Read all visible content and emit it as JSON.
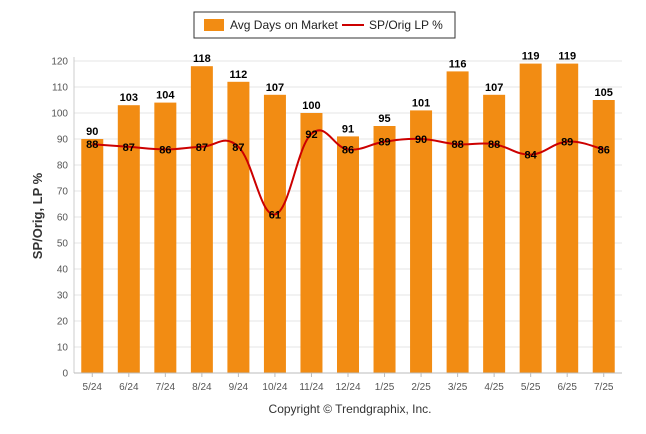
{
  "chart_data": {
    "type": "bar",
    "categories": [
      "5/24",
      "6/24",
      "7/24",
      "8/24",
      "9/24",
      "10/24",
      "11/24",
      "12/24",
      "1/25",
      "2/25",
      "3/25",
      "4/25",
      "5/25",
      "6/25",
      "7/25"
    ],
    "series": [
      {
        "name": "Avg Days on Market",
        "type": "bar",
        "color": "#F28C13",
        "values": [
          90,
          103,
          104,
          118,
          112,
          107,
          100,
          91,
          95,
          101,
          116,
          107,
          119,
          119,
          105
        ]
      },
      {
        "name": "SP/Orig LP %",
        "type": "line",
        "color": "#CC0000",
        "values": [
          88,
          87,
          86,
          87,
          87,
          61,
          92,
          86,
          89,
          90,
          88,
          88,
          84,
          89,
          86
        ]
      }
    ],
    "ylabel": "SP/Orig, LP %",
    "ylim": [
      0,
      120
    ],
    "yticks": [
      0,
      10,
      20,
      30,
      40,
      50,
      60,
      70,
      80,
      90,
      100,
      110,
      120
    ],
    "grid": true,
    "legend_position": "top-center"
  },
  "footer": {
    "copyright": "Copyright © Trendgraphix, Inc."
  }
}
